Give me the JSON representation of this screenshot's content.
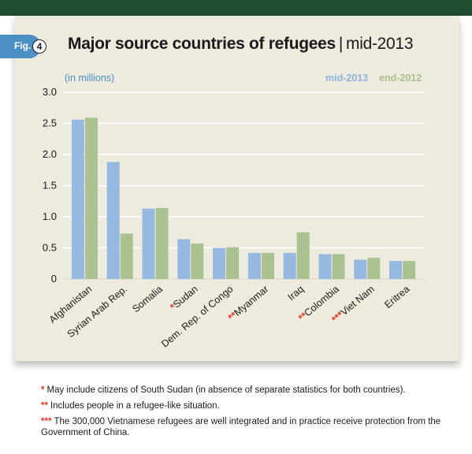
{
  "figure": {
    "label": "Fig.",
    "number": "4",
    "title": "Major source countries of refugees",
    "title_separator": "|",
    "subtitle": "mid-2013",
    "unit_label": "(in millions)"
  },
  "legend": {
    "mid": "mid-2013",
    "end": "end-2012"
  },
  "colors": {
    "mid": "#97b8e0",
    "end": "#aac292",
    "panel": "#ecebdd",
    "header_bar": "#1f4b2e",
    "accent": "#4a90c4",
    "star": "#e3342a"
  },
  "chart_data": {
    "type": "bar",
    "title": "Major source countries of refugees | mid-2013",
    "ylabel": "(in millions)",
    "ylim": [
      0,
      3.0
    ],
    "yticks": [
      "0",
      "0.5",
      "1.0",
      "1.5",
      "2.0",
      "2.5",
      "3.0"
    ],
    "grid": true,
    "legend_position": "top-right",
    "categories": [
      {
        "stars": "",
        "name": "Afghanistan"
      },
      {
        "stars": "",
        "name": "Syrian Arab Rep."
      },
      {
        "stars": "",
        "name": "Somalia"
      },
      {
        "stars": "*",
        "name": "Sudan"
      },
      {
        "stars": "",
        "name": "Dem. Rep. of Congo"
      },
      {
        "stars": "**",
        "name": "Myanmar"
      },
      {
        "stars": "",
        "name": "Iraq"
      },
      {
        "stars": "**",
        "name": "Colombia"
      },
      {
        "stars": "***",
        "name": "Viet Nam"
      },
      {
        "stars": "",
        "name": "Eritrea"
      }
    ],
    "series": [
      {
        "name": "mid-2013",
        "values": [
          2.56,
          1.88,
          1.13,
          0.64,
          0.5,
          0.42,
          0.42,
          0.4,
          0.31,
          0.29
        ]
      },
      {
        "name": "end-2012",
        "values": [
          2.59,
          0.73,
          1.14,
          0.57,
          0.51,
          0.42,
          0.75,
          0.4,
          0.34,
          0.29
        ]
      }
    ]
  },
  "footnotes": [
    {
      "stars": "*",
      "text": "May include citizens of South Sudan (in absence of separate statistics for both countries)."
    },
    {
      "stars": "**",
      "text": "Includes people in a refugee-like situation."
    },
    {
      "stars": "***",
      "text": "The 300,000 Vietnamese refugees are well integrated and in practice receive protection from the Government of China."
    }
  ]
}
